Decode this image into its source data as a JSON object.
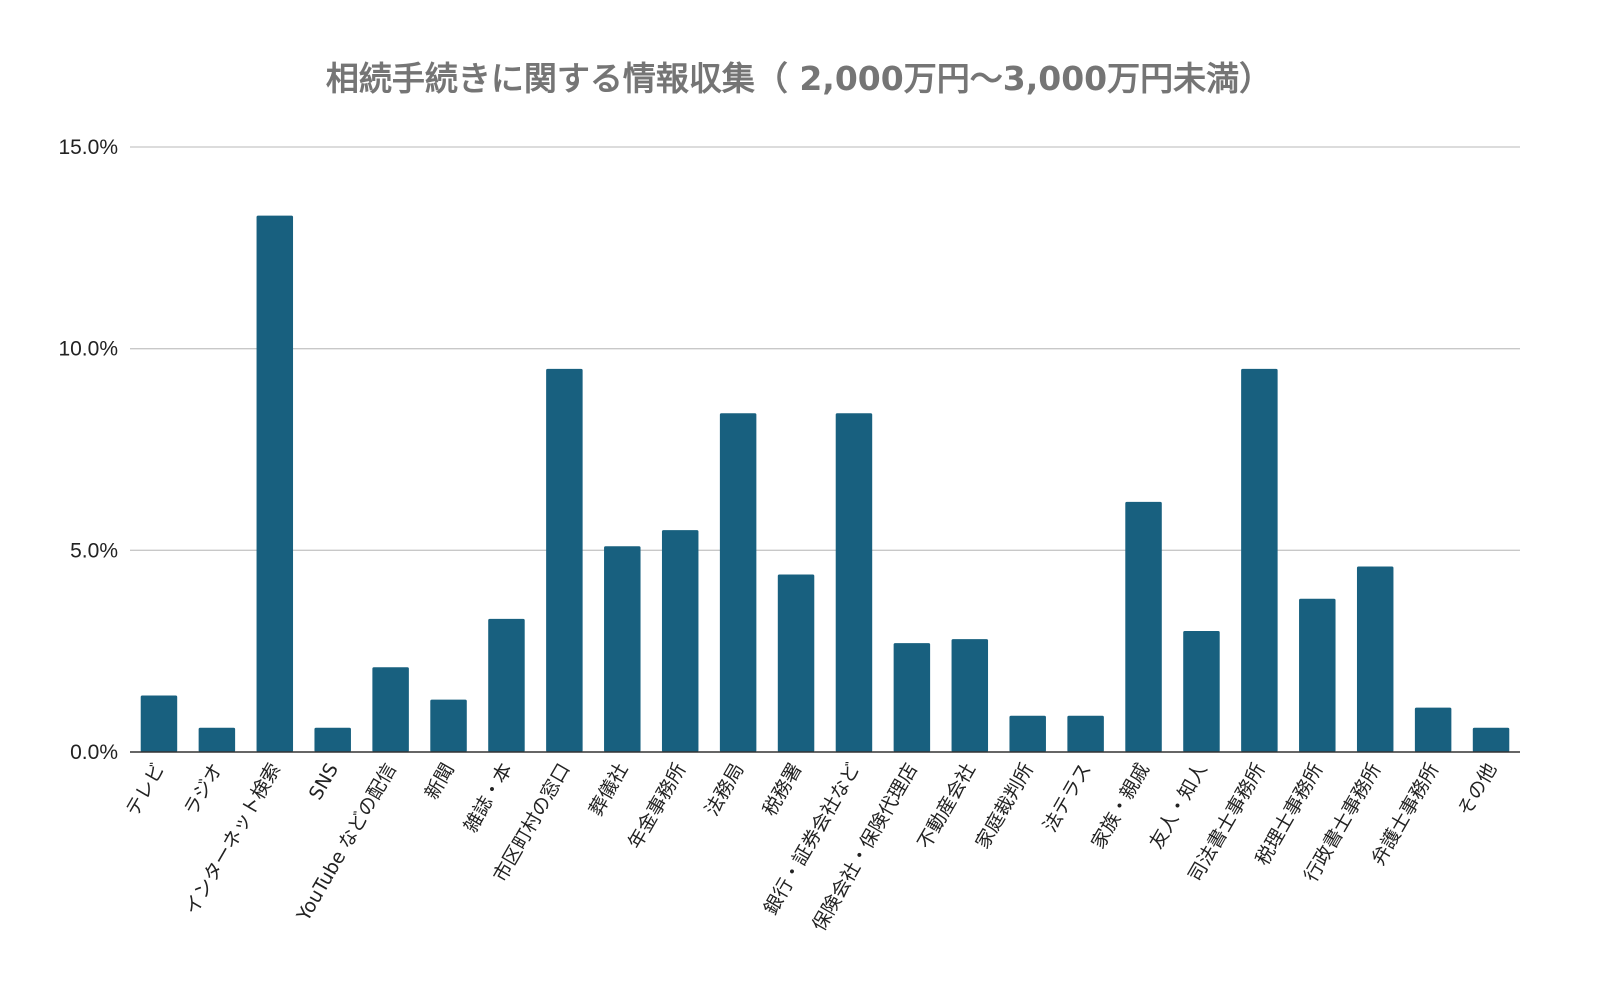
{
  "chart_data": {
    "type": "bar",
    "title": "相続手続きに関する情報収集（ 2,000万円～3,000万円未満）",
    "xlabel": "",
    "ylabel": "",
    "ylim": [
      0,
      15
    ],
    "y_ticks": [
      0,
      5,
      10,
      15
    ],
    "y_tick_labels": [
      "0.0%",
      "5.0%",
      "10.0%",
      "15.0%"
    ],
    "grid": true,
    "legend": "none",
    "bar_color": "#18607F",
    "categories": [
      "テレビ",
      "ラジオ",
      "インターネット検索",
      "SNS",
      "YouTube などの配信",
      "新聞",
      "雑誌・本",
      "市区町村の窓口",
      "葬儀社",
      "年金事務所",
      "法務局",
      "税務署",
      "銀行・証券会社など",
      "保険会社・保険代理店",
      "不動産会社",
      "家庭裁判所",
      "法テラス",
      "家族・親戚",
      "友人・知人",
      "司法書士事務所",
      "税理士事務所",
      "行政書士事務所",
      "弁護士事務所",
      "その他"
    ],
    "values": [
      1.4,
      0.6,
      13.3,
      0.6,
      2.1,
      1.3,
      3.3,
      9.5,
      5.1,
      5.5,
      8.4,
      4.4,
      8.4,
      2.7,
      2.8,
      0.9,
      0.9,
      6.2,
      3.0,
      9.5,
      3.8,
      4.6,
      1.1,
      0.6
    ]
  }
}
